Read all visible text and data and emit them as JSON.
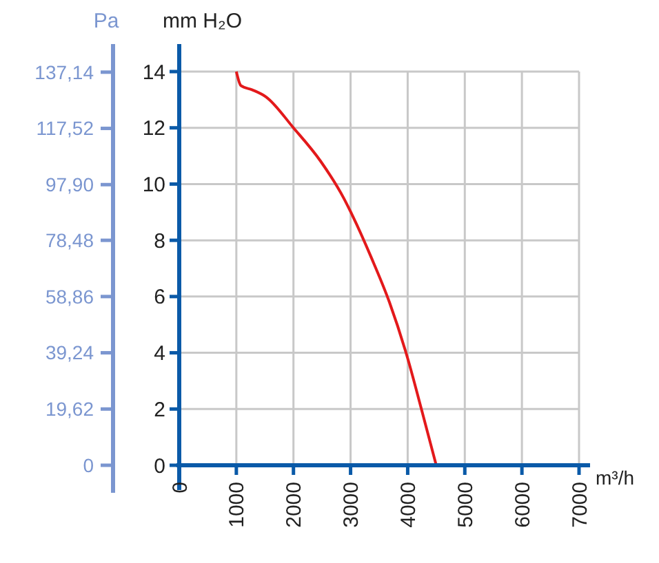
{
  "chart_data": {
    "type": "line",
    "xlabel": "m³/h",
    "ylabel": "mm H₂O",
    "y2label": "Pa",
    "xlim": [
      0,
      7000
    ],
    "xticks": [
      0,
      1000,
      2000,
      3000,
      4000,
      5000,
      6000,
      7000
    ],
    "ylim": [
      0,
      14
    ],
    "yticks": [
      0,
      2,
      4,
      6,
      8,
      10,
      12,
      14
    ],
    "y2lim": [
      0,
      137.34
    ],
    "y2ticks": [
      0,
      {
        "value": 19.62,
        "label": "19,62"
      },
      {
        "value": 39.24,
        "label": "39,24"
      },
      {
        "value": 58.86,
        "label": "58,86"
      },
      {
        "value": 78.48,
        "label": "78,48"
      },
      {
        "value": 97.9,
        "label": "97,90"
      },
      {
        "value": 117.52,
        "label": "117,52"
      },
      {
        "value": 137.14,
        "label": "137,14"
      }
    ],
    "grid": true,
    "line_style": "solid",
    "marker": "none",
    "series": [
      {
        "color": "#e3191b",
        "x": [
          1000,
          1080,
          1280,
          1520,
          2000,
          2480,
          2880,
          3040,
          3360,
          3680,
          4000,
          4240,
          4500
        ],
        "values": [
          14,
          13.5,
          13.35,
          13.1,
          12,
          10.8,
          9.5,
          8.85,
          7.4,
          5.8,
          3.8,
          2.0,
          0
        ]
      }
    ]
  }
}
